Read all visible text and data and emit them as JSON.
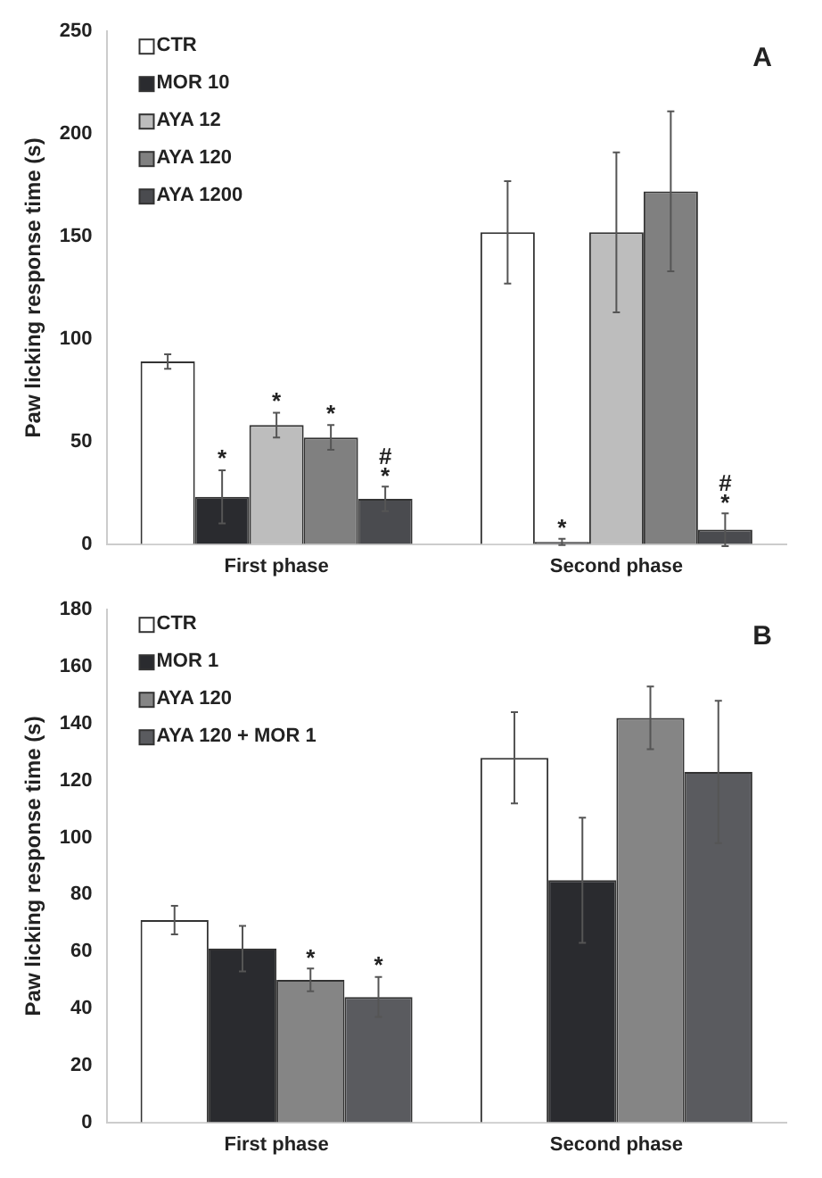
{
  "chart_data": [
    {
      "type": "bar",
      "ylabel": "Paw licking response time (s)",
      "categories": [
        "First phase",
        "Second phase"
      ],
      "ylim": [
        0,
        250
      ],
      "yticks": [
        0,
        50,
        100,
        150,
        200,
        250
      ],
      "grid": false,
      "legend": "top left",
      "series": [
        {
          "name": "CTR",
          "color": "#ffffff",
          "values": [
            89,
            152
          ],
          "errors": [
            3.5,
            25
          ]
        },
        {
          "name": "MOR 10",
          "color": "#2a2b2f",
          "values": [
            23,
            1
          ],
          "errors": [
            13,
            1.5
          ],
          "value_labels": [
            "*",
            "*"
          ]
        },
        {
          "name": "AYA 12",
          "color": "#bdbdbd",
          "values": [
            58,
            152
          ],
          "errors": [
            6,
            39
          ],
          "value_labels": [
            "*",
            null
          ]
        },
        {
          "name": "AYA 120",
          "color": "#808080",
          "values": [
            52,
            172
          ],
          "errors": [
            6,
            39
          ],
          "value_labels": [
            "*",
            null
          ]
        },
        {
          "name": "AYA 1200",
          "color": "#4a4b4f",
          "values": [
            22,
            7
          ],
          "errors": [
            6,
            8
          ],
          "value_labels": [
            "#\n*",
            "#\n*"
          ]
        }
      ],
      "annotations": [
        "A"
      ]
    },
    {
      "type": "bar",
      "ylabel": "Paw licking response time (s)",
      "categories": [
        "First phase",
        "Second phase"
      ],
      "ylim": [
        0,
        180
      ],
      "yticks": [
        0,
        20,
        40,
        60,
        80,
        100,
        120,
        140,
        160,
        180
      ],
      "grid": false,
      "legend": "top left",
      "series": [
        {
          "name": "CTR",
          "color": "#ffffff",
          "values": [
            71,
            128
          ],
          "errors": [
            5,
            16
          ]
        },
        {
          "name": "MOR 1",
          "color": "#2a2b2f",
          "values": [
            61,
            85
          ],
          "errors": [
            8,
            22
          ]
        },
        {
          "name": "AYA 120",
          "color": "#858585",
          "values": [
            50,
            142
          ],
          "errors": [
            4,
            11
          ],
          "value_labels": [
            "*",
            null
          ]
        },
        {
          "name": "AYA 120 + MOR 1",
          "color": "#5a5b5f",
          "values": [
            44,
            123
          ],
          "errors": [
            7,
            25
          ],
          "value_labels": [
            "*",
            null
          ]
        }
      ],
      "annotations": [
        "B"
      ]
    }
  ]
}
